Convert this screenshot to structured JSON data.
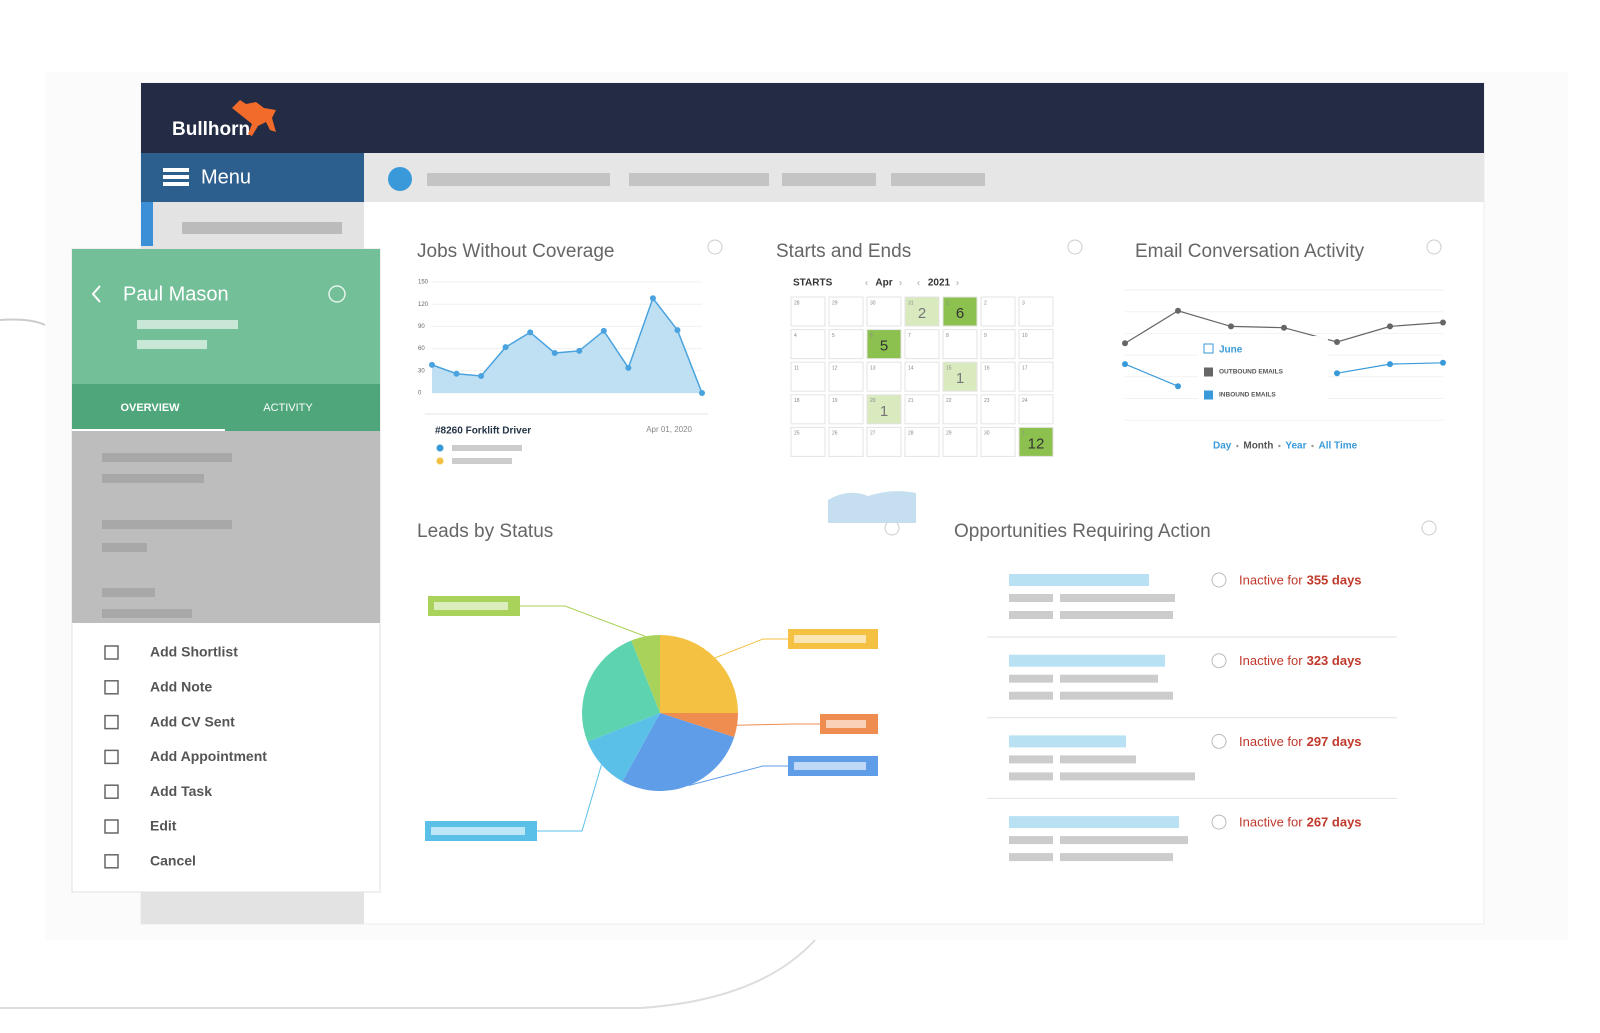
{
  "brand": "Bullhorn",
  "menu": "Menu",
  "profile": {
    "name": "Paul Mason",
    "tabs": [
      "OVERVIEW",
      "ACTIVITY"
    ],
    "actions": [
      "Add Shortlist",
      "Add Note",
      "Add CV Sent",
      "Add Appointment",
      "Add Task",
      "Edit",
      "Cancel"
    ]
  },
  "jobs": {
    "type": "line",
    "title": "Jobs Without Coverage",
    "values": [
      38,
      26,
      23,
      62,
      82,
      54,
      57,
      84,
      34,
      128,
      85,
      0
    ],
    "ylim": [
      0,
      150
    ],
    "yticks": [
      0,
      30,
      60,
      90,
      120,
      150
    ],
    "color": "#4aa3df",
    "job": "#8260 Forklift Driver",
    "date": "Apr 01, 2020"
  },
  "starts": {
    "title": "Starts and Ends",
    "mode": "STARTS",
    "month": "Apr",
    "year": "2021",
    "weeks": [
      [
        28,
        29,
        30,
        31,
        1,
        2,
        3
      ],
      [
        4,
        5,
        6,
        7,
        8,
        9,
        10
      ],
      [
        11,
        12,
        13,
        14,
        15,
        16,
        17
      ],
      [
        18,
        19,
        20,
        21,
        22,
        23,
        24
      ],
      [
        25,
        26,
        27,
        28,
        29,
        30,
        1
      ]
    ],
    "counts": [
      [
        null,
        null,
        null,
        2,
        6,
        null,
        null
      ],
      [
        null,
        null,
        5,
        null,
        null,
        null,
        null
      ],
      [
        null,
        null,
        null,
        null,
        1,
        null,
        null
      ],
      [
        null,
        null,
        1,
        null,
        null,
        null,
        null
      ],
      [
        null,
        null,
        null,
        null,
        null,
        null,
        12
      ]
    ]
  },
  "email": {
    "type": "line",
    "title": "Email Conversation Activity",
    "ylim": [
      0,
      100
    ],
    "tooltip": "June",
    "series": [
      {
        "name": "OUTBOUND EMAILS",
        "color": "#666666",
        "values": [
          59,
          84,
          72,
          71,
          60,
          72,
          75
        ]
      },
      {
        "name": "INBOUND EMAILS",
        "color": "#3a9ad9",
        "values": [
          43,
          26,
          null,
          null,
          36,
          43,
          44
        ]
      }
    ],
    "periods": [
      "Day",
      "Month",
      "Year",
      "All Time"
    ]
  },
  "leads": {
    "type": "pie",
    "title": "Leads by Status",
    "values": [
      25,
      5,
      28,
      11,
      25,
      6
    ],
    "colors": [
      "#f4c142",
      "#ef8c50",
      "#5f9de8",
      "#5bc0e8",
      "#5ed3b0",
      "#a8d25a"
    ]
  },
  "opps": {
    "title": "Opportunities Requiring Action",
    "rows": [
      {
        "label": "Inactive for",
        "days": "355 days"
      },
      {
        "label": "Inactive for",
        "days": "323 days"
      },
      {
        "label": "Inactive for",
        "days": "297 days"
      },
      {
        "label": "Inactive for",
        "days": "267 days"
      }
    ]
  }
}
